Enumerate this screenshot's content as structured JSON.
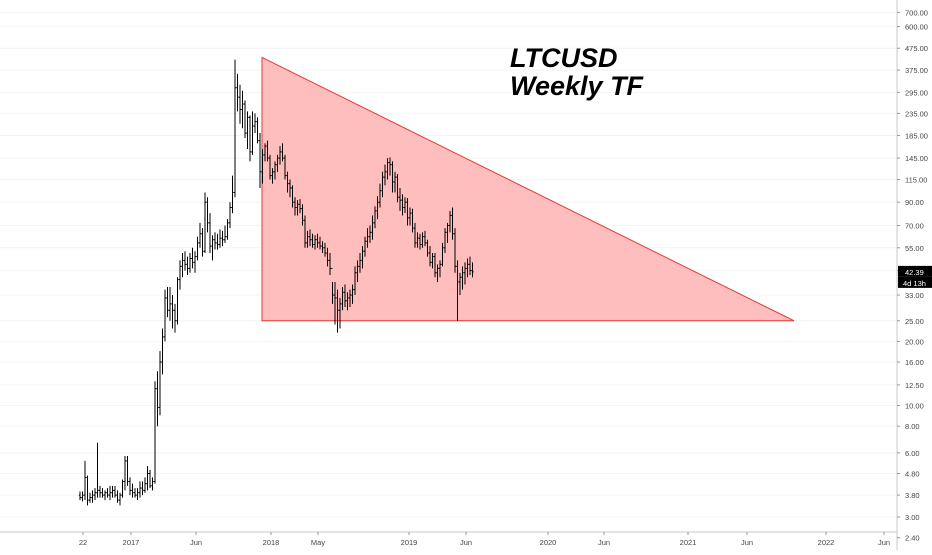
{
  "chart_data": {
    "type": "candlestick",
    "title": "LTCUSD",
    "subtitle": "Weekly TF",
    "y_scale": "log",
    "ylim": [
      2.1,
      800
    ],
    "y_ticks": [
      "700.00",
      "600.00",
      "475.00",
      "375.00",
      "295.00",
      "235.00",
      "185.00",
      "145.00",
      "115.00",
      "90.00",
      "70.00",
      "55.00",
      "43.00",
      "33.00",
      "25.00",
      "20.00",
      "16.00",
      "12.50",
      "10.00",
      "8.00",
      "6.00",
      "4.80",
      "3.80",
      "3.00",
      "2.40"
    ],
    "x_ticks": [
      "22",
      "2017",
      "Jun",
      "2018",
      "May",
      "2019",
      "Jun",
      "2020",
      "Jun",
      "2021",
      "Jun",
      "2022",
      "Jun"
    ],
    "last_price": "42.39",
    "countdown": "4d 13h",
    "colors": {
      "bar": "#000000",
      "triangle_fill": "#ffb3b3",
      "triangle_edge": "#e53935",
      "price_badge": "#000000"
    },
    "triangle": {
      "apex_high": 430,
      "base": 25,
      "start_time": "2017-12-18",
      "end_time": "2021-10-25"
    },
    "series": [
      {
        "values": [
          [
            3.8,
            3.95,
            3.6,
            3.7
          ],
          [
            3.7,
            3.95,
            3.55,
            3.8
          ],
          [
            3.8,
            5.5,
            3.6,
            4.6
          ],
          [
            4.6,
            4.7,
            3.4,
            3.6
          ],
          [
            3.6,
            3.9,
            3.5,
            3.7
          ],
          [
            3.7,
            4.0,
            3.5,
            3.8
          ],
          [
            3.8,
            4.1,
            3.6,
            3.9
          ],
          [
            3.9,
            6.7,
            3.7,
            4.0
          ],
          [
            4.0,
            4.2,
            3.7,
            3.9
          ],
          [
            3.9,
            4.1,
            3.7,
            3.8
          ],
          [
            3.8,
            4.0,
            3.6,
            3.9
          ],
          [
            3.9,
            4.1,
            3.7,
            3.8
          ],
          [
            3.8,
            4.2,
            3.6,
            3.9
          ],
          [
            3.9,
            4.2,
            3.7,
            4.0
          ],
          [
            4.0,
            4.2,
            3.7,
            3.8
          ],
          [
            3.8,
            4.0,
            3.5,
            3.6
          ],
          [
            3.6,
            3.9,
            3.4,
            3.8
          ],
          [
            3.8,
            4.5,
            3.7,
            4.4
          ],
          [
            4.4,
            5.8,
            4.0,
            5.5
          ],
          [
            5.5,
            5.8,
            4.2,
            4.4
          ],
          [
            4.4,
            4.6,
            3.8,
            4.0
          ],
          [
            4.0,
            4.3,
            3.7,
            3.9
          ],
          [
            3.9,
            4.1,
            3.7,
            3.8
          ],
          [
            3.8,
            4.1,
            3.6,
            3.9
          ],
          [
            3.9,
            4.4,
            3.7,
            4.1
          ],
          [
            4.1,
            4.4,
            3.8,
            4.0
          ],
          [
            4.0,
            4.6,
            3.9,
            4.3
          ],
          [
            4.3,
            5.2,
            4.0,
            4.8
          ],
          [
            4.8,
            5.0,
            4.1,
            4.2
          ],
          [
            4.2,
            4.6,
            4.0,
            4.4
          ],
          [
            4.4,
            13.0,
            4.3,
            12.0
          ],
          [
            12.0,
            14.5,
            8.0,
            9.8
          ],
          [
            9.8,
            18.0,
            9.0,
            16.0
          ],
          [
            16.0,
            23.0,
            14.0,
            21.0
          ],
          [
            21.0,
            35.0,
            20.0,
            32.0
          ],
          [
            32.0,
            36.0,
            26.0,
            28.0
          ],
          [
            28.0,
            36.0,
            25.0,
            30.0
          ],
          [
            30.0,
            33.0,
            23.0,
            28.0
          ],
          [
            28.0,
            30.0,
            22.0,
            25.0
          ],
          [
            25.0,
            40.0,
            24.0,
            39.0
          ],
          [
            39.0,
            48.0,
            35.0,
            45.0
          ],
          [
            45.0,
            52.0,
            40.0,
            48.0
          ],
          [
            48.0,
            53.0,
            43.0,
            46.0
          ],
          [
            46.0,
            50.0,
            41.0,
            44.0
          ],
          [
            44.0,
            52.0,
            42.0,
            49.0
          ],
          [
            49.0,
            55.0,
            44.0,
            47.0
          ],
          [
            47.0,
            53.0,
            42.0,
            50.0
          ],
          [
            50.0,
            62.0,
            48.0,
            58.0
          ],
          [
            58.0,
            72.0,
            55.0,
            64.0
          ],
          [
            64.0,
            68.0,
            50.0,
            53.0
          ],
          [
            53.0,
            100.0,
            52.0,
            90.0
          ],
          [
            90.0,
            95.0,
            65.0,
            72.0
          ],
          [
            72.0,
            80.0,
            52.0,
            56.0
          ],
          [
            56.0,
            63.0,
            48.0,
            60.0
          ],
          [
            60.0,
            65.0,
            54.0,
            58.0
          ],
          [
            58.0,
            64.0,
            54.0,
            57.0
          ],
          [
            57.0,
            67.0,
            55.0,
            61.0
          ],
          [
            61.0,
            66.0,
            56.0,
            60.0
          ],
          [
            60.0,
            70.0,
            58.0,
            62.0
          ],
          [
            62.0,
            75.0,
            60.0,
            72.0
          ],
          [
            72.0,
            90.0,
            68.0,
            85.0
          ],
          [
            85.0,
            120.0,
            80.0,
            100.0
          ],
          [
            100.0,
            420.0,
            95.0,
            310.0
          ],
          [
            310.0,
            360.0,
            240.0,
            280.0
          ],
          [
            280.0,
            320.0,
            210.0,
            245.0
          ],
          [
            245.0,
            300.0,
            200.0,
            260.0
          ],
          [
            260.0,
            270.0,
            180.0,
            190.0
          ],
          [
            190.0,
            240.0,
            160.0,
            225.0
          ],
          [
            225.0,
            230.0,
            140.0,
            155.0
          ],
          [
            155.0,
            240.0,
            150.0,
            205.0
          ],
          [
            205.0,
            235.0,
            190.0,
            215.0
          ],
          [
            215.0,
            225.0,
            170.0,
            175.0
          ],
          [
            175.0,
            190.0,
            105.0,
            125.0
          ],
          [
            125.0,
            160.0,
            110.0,
            150.0
          ],
          [
            150.0,
            170.0,
            140.0,
            165.0
          ],
          [
            165.0,
            175.0,
            140.0,
            145.0
          ],
          [
            145.0,
            150.0,
            115.0,
            120.0
          ],
          [
            120.0,
            130.0,
            110.0,
            125.0
          ],
          [
            125.0,
            140.0,
            115.0,
            135.0
          ],
          [
            135.0,
            150.0,
            125.0,
            145.0
          ],
          [
            145.0,
            165.0,
            135.0,
            155.0
          ],
          [
            155.0,
            170.0,
            140.0,
            145.0
          ],
          [
            145.0,
            150.0,
            115.0,
            120.0
          ],
          [
            120.0,
            125.0,
            100.0,
            110.0
          ],
          [
            110.0,
            115.0,
            95.0,
            105.0
          ],
          [
            105.0,
            108.0,
            85.0,
            90.0
          ],
          [
            90.0,
            95.0,
            78.0,
            85.0
          ],
          [
            85.0,
            92.0,
            78.0,
            88.0
          ],
          [
            88.0,
            93.0,
            80.0,
            84.0
          ],
          [
            84.0,
            88.0,
            70.0,
            74.0
          ],
          [
            74.0,
            78.0,
            55.0,
            58.0
          ],
          [
            58.0,
            66.0,
            55.0,
            62.0
          ],
          [
            62.0,
            67.0,
            56.0,
            60.0
          ],
          [
            60.0,
            64.0,
            55.0,
            57.0
          ],
          [
            57.0,
            63.0,
            54.0,
            60.0
          ],
          [
            60.0,
            64.0,
            55.0,
            58.0
          ],
          [
            58.0,
            62.0,
            54.0,
            56.0
          ],
          [
            56.0,
            59.0,
            52.0,
            55.0
          ],
          [
            55.0,
            58.0,
            50.0,
            52.0
          ],
          [
            52.0,
            55.0,
            45.0,
            48.0
          ],
          [
            48.0,
            52.0,
            41.0,
            44.0
          ],
          [
            44.0,
            38.0,
            30.0,
            33.0
          ],
          [
            33.0,
            38.0,
            24.0,
            32.0
          ],
          [
            32.0,
            35.0,
            22.0,
            28.0
          ],
          [
            28.0,
            32.0,
            23.0,
            30.0
          ],
          [
            30.0,
            36.0,
            28.0,
            34.0
          ],
          [
            34.0,
            37.0,
            29.0,
            31.0
          ],
          [
            31.0,
            34.0,
            28.0,
            32.0
          ],
          [
            32.0,
            35.0,
            29.0,
            33.0
          ],
          [
            33.0,
            37.0,
            30.0,
            35.0
          ],
          [
            35.0,
            45.0,
            33.0,
            42.0
          ],
          [
            42.0,
            48.0,
            38.0,
            45.0
          ],
          [
            45.0,
            52.0,
            42.0,
            48.0
          ],
          [
            48.0,
            56.0,
            44.0,
            53.0
          ],
          [
            53.0,
            62.0,
            50.0,
            59.0
          ],
          [
            59.0,
            68.0,
            55.0,
            62.0
          ],
          [
            62.0,
            70.0,
            58.0,
            65.0
          ],
          [
            65.0,
            78.0,
            60.0,
            72.0
          ],
          [
            72.0,
            86.0,
            68.0,
            82.0
          ],
          [
            82.0,
            96.0,
            75.0,
            90.0
          ],
          [
            90.0,
            110.0,
            85.0,
            102.0
          ],
          [
            102.0,
            125.0,
            95.0,
            118.0
          ],
          [
            118.0,
            135.0,
            108.0,
            125.0
          ],
          [
            125.0,
            145.0,
            115.0,
            138.0
          ],
          [
            138.0,
            146.0,
            120.0,
            135.0
          ],
          [
            135.0,
            140.0,
            100.0,
            112.0
          ],
          [
            112.0,
            125.0,
            100.0,
            118.0
          ],
          [
            118.0,
            122.0,
            90.0,
            95.0
          ],
          [
            95.0,
            105.0,
            82.0,
            92.0
          ],
          [
            92.0,
            98.0,
            78.0,
            85.0
          ],
          [
            85.0,
            95.0,
            80.0,
            90.0
          ],
          [
            90.0,
            94.0,
            70.0,
            76.0
          ],
          [
            76.0,
            85.0,
            70.0,
            80.0
          ],
          [
            80.0,
            84.0,
            65.0,
            68.0
          ],
          [
            68.0,
            72.0,
            55.0,
            58.0
          ],
          [
            58.0,
            65.0,
            55.0,
            61.0
          ],
          [
            61.0,
            64.0,
            54.0,
            57.0
          ],
          [
            57.0,
            65.0,
            55.0,
            62.0
          ],
          [
            62.0,
            66.0,
            56.0,
            58.0
          ],
          [
            58.0,
            60.0,
            50.0,
            52.0
          ],
          [
            52.0,
            56.0,
            45.0,
            47.0
          ],
          [
            47.0,
            52.0,
            44.0,
            50.0
          ],
          [
            50.0,
            52.0,
            40.0,
            42.0
          ],
          [
            42.0,
            46.0,
            38.0,
            44.0
          ],
          [
            44.0,
            48.0,
            40.0,
            46.0
          ],
          [
            46.0,
            58.0,
            45.0,
            55.0
          ],
          [
            55.0,
            68.0,
            52.0,
            65.0
          ],
          [
            65.0,
            72.0,
            58.0,
            70.0
          ],
          [
            70.0,
            82.0,
            65.0,
            78.0
          ],
          [
            78.0,
            85.0,
            60.0,
            64.0
          ],
          [
            64.0,
            68.0,
            42.0,
            45.0
          ],
          [
            45.0,
            48.0,
            25.0,
            38.0
          ],
          [
            38.0,
            42.0,
            33.0,
            40.0
          ],
          [
            40.0,
            45.0,
            35.0,
            42.0
          ],
          [
            42.0,
            47.0,
            37.0,
            44.0
          ],
          [
            44.0,
            49.0,
            40.0,
            46.0
          ],
          [
            46.0,
            50.0,
            41.0,
            43.0
          ],
          [
            43.0,
            47.0,
            40.0,
            42.39
          ]
        ]
      }
    ]
  }
}
